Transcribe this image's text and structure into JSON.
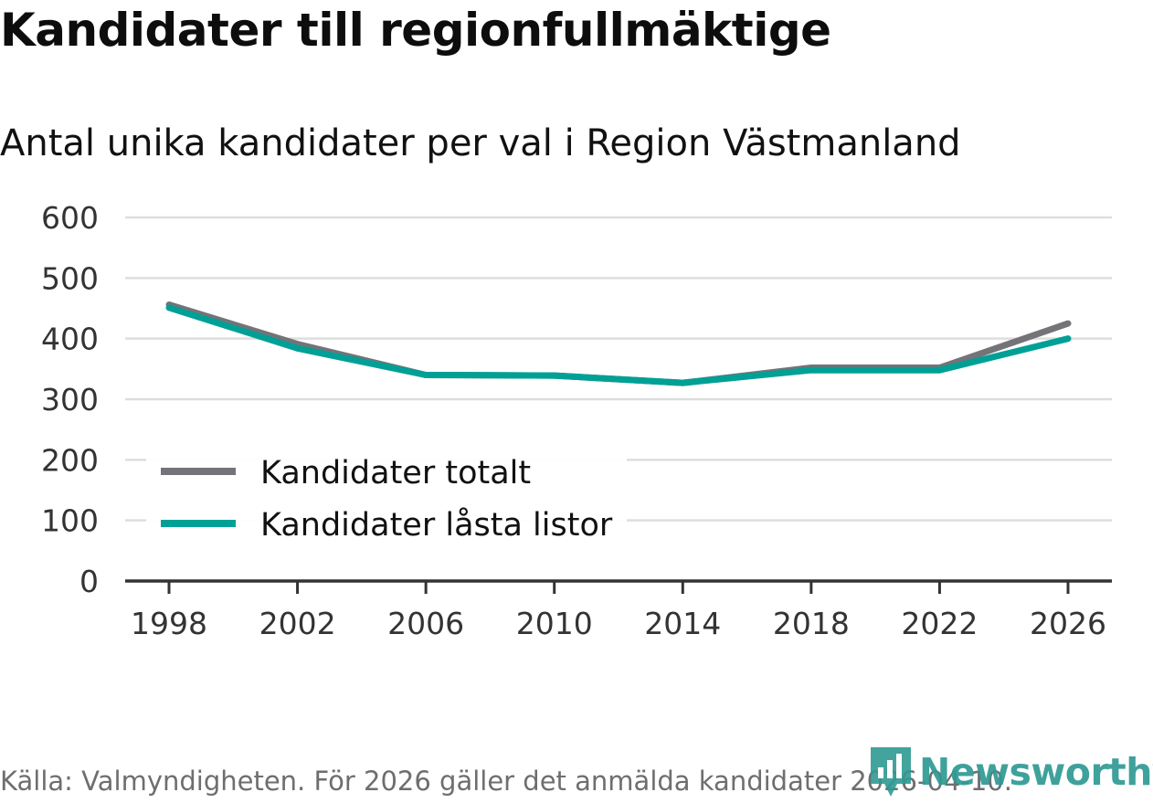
{
  "header": {
    "title": "Kandidater till regionfullmäktige",
    "subtitle": "Antal unika kandidater per val i Region Västmanland"
  },
  "chart_data": {
    "type": "line",
    "title": "Kandidater till regionfullmäktige",
    "subtitle": "Antal unika kandidater per val i Region Västmanland",
    "xlabel": "",
    "ylabel": "",
    "x": [
      1998,
      2002,
      2006,
      2010,
      2014,
      2018,
      2022,
      2026
    ],
    "x_tick_labels": [
      "1998",
      "2002",
      "2006",
      "2010",
      "2014",
      "2018",
      "2022",
      "2026"
    ],
    "ylim": [
      0,
      600
    ],
    "y_ticks": [
      0,
      100,
      200,
      300,
      400,
      500,
      600
    ],
    "y_tick_labels": [
      "0",
      "100",
      "200",
      "300",
      "400",
      "500",
      "600"
    ],
    "grid": true,
    "legend_position": "bottom-left",
    "series": [
      {
        "name": "Kandidater totalt",
        "color": "#737378",
        "values": [
          456,
          391,
          340,
          339,
          327,
          352,
          352,
          425
        ]
      },
      {
        "name": "Kandidater låsta listor",
        "color": "#00a096",
        "values": [
          451,
          384,
          340,
          339,
          327,
          348,
          348,
          400
        ]
      }
    ]
  },
  "footer": {
    "source": "Källa: Valmyndigheten. För 2026 gäller det anmälda kandidater 2026-04-10."
  },
  "brand": {
    "name": "Newsworthy",
    "color": "#2f9a94"
  }
}
